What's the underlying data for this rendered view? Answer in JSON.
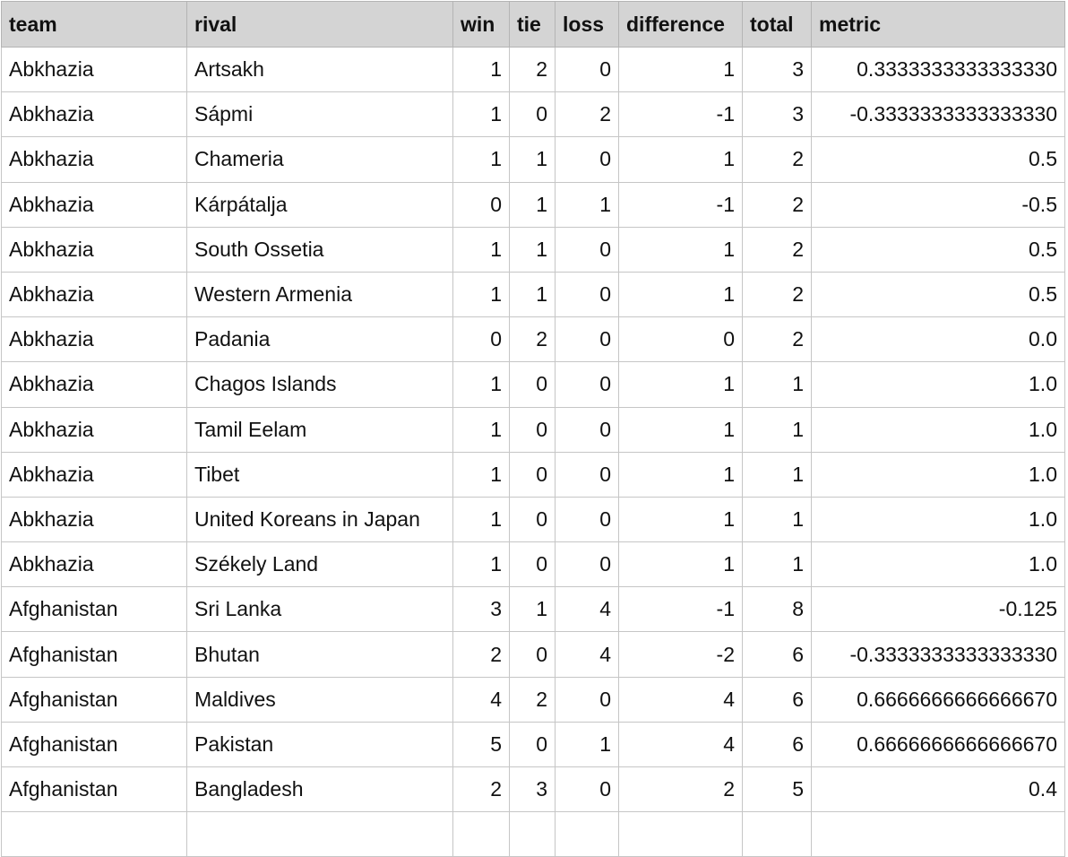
{
  "columns": [
    "team",
    "rival",
    "win",
    "tie",
    "loss",
    "difference",
    "total",
    "metric"
  ],
  "rows": [
    [
      "Abkhazia",
      "Artsakh",
      "1",
      "2",
      "0",
      "1",
      "3",
      "0.3333333333333330"
    ],
    [
      "Abkhazia",
      "Sápmi",
      "1",
      "0",
      "2",
      "-1",
      "3",
      "-0.3333333333333330"
    ],
    [
      "Abkhazia",
      "Chameria",
      "1",
      "1",
      "0",
      "1",
      "2",
      "0.5"
    ],
    [
      "Abkhazia",
      "Kárpátalja",
      "0",
      "1",
      "1",
      "-1",
      "2",
      "-0.5"
    ],
    [
      "Abkhazia",
      "South Ossetia",
      "1",
      "1",
      "0",
      "1",
      "2",
      "0.5"
    ],
    [
      "Abkhazia",
      "Western Armenia",
      "1",
      "1",
      "0",
      "1",
      "2",
      "0.5"
    ],
    [
      "Abkhazia",
      "Padania",
      "0",
      "2",
      "0",
      "0",
      "2",
      "0.0"
    ],
    [
      "Abkhazia",
      "Chagos Islands",
      "1",
      "0",
      "0",
      "1",
      "1",
      "1.0"
    ],
    [
      "Abkhazia",
      "Tamil Eelam",
      "1",
      "0",
      "0",
      "1",
      "1",
      "1.0"
    ],
    [
      "Abkhazia",
      "Tibet",
      "1",
      "0",
      "0",
      "1",
      "1",
      "1.0"
    ],
    [
      "Abkhazia",
      "United Koreans in Japan",
      "1",
      "0",
      "0",
      "1",
      "1",
      "1.0"
    ],
    [
      "Abkhazia",
      "Székely Land",
      "1",
      "0",
      "0",
      "1",
      "1",
      "1.0"
    ],
    [
      "Afghanistan",
      "Sri Lanka",
      "3",
      "1",
      "4",
      "-1",
      "8",
      "-0.125"
    ],
    [
      "Afghanistan",
      "Bhutan",
      "2",
      "0",
      "4",
      "-2",
      "6",
      "-0.3333333333333330"
    ],
    [
      "Afghanistan",
      "Maldives",
      "4",
      "2",
      "0",
      "4",
      "6",
      "0.6666666666666670"
    ],
    [
      "Afghanistan",
      "Pakistan",
      "5",
      "0",
      "1",
      "4",
      "6",
      "0.6666666666666670"
    ],
    [
      "Afghanistan",
      "Bangladesh",
      "2",
      "3",
      "0",
      "2",
      "5",
      "0.4"
    ],
    [
      "",
      "",
      "",
      "",
      "",
      "",
      "",
      ""
    ]
  ]
}
